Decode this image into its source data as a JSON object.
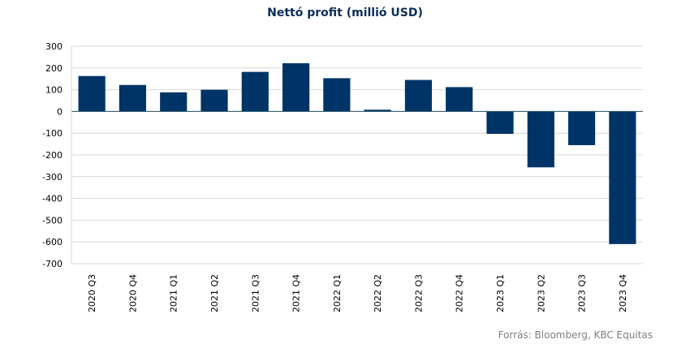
{
  "chart_data": {
    "type": "bar",
    "title": "Nettó profit (millió USD)",
    "categories": [
      "2020 Q3",
      "2020 Q4",
      "2021 Q1",
      "2021 Q2",
      "2021 Q3",
      "2021 Q4",
      "2022 Q1",
      "2022 Q2",
      "2022 Q3",
      "2022 Q4",
      "2023 Q1",
      "2023 Q2",
      "2023 Q3",
      "2023 Q4"
    ],
    "values": [
      163,
      122,
      88,
      100,
      182,
      222,
      153,
      8,
      145,
      112,
      -103,
      -257,
      -155,
      -610
    ],
    "ylim": [
      -700,
      300
    ],
    "yticks": [
      300,
      200,
      100,
      0,
      -100,
      -200,
      -300,
      -400,
      -500,
      -600,
      -700
    ],
    "xlabel": "",
    "ylabel": "",
    "grid": true,
    "bar_color": "#003466",
    "grid_color": "#d9d9d9",
    "axis_color": "#1f4e5f"
  },
  "source": "Forrás: Bloomberg,  KBC Equitas"
}
